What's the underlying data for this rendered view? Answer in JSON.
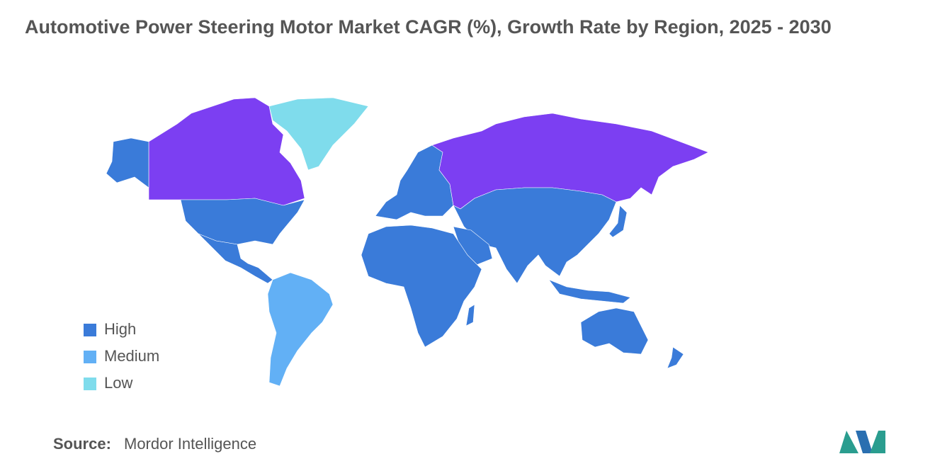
{
  "title": "Automotive Power Steering Motor Market CAGR (%), Growth Rate by Region, 2025 - 2030",
  "legend": [
    {
      "label": "High",
      "color": "#3a7bd9"
    },
    {
      "label": "Medium",
      "color": "#62b0f5"
    },
    {
      "label": "Low",
      "color": "#7fdcec"
    }
  ],
  "source": {
    "label": "Source:",
    "text": "Mordor Intelligence"
  }
}
